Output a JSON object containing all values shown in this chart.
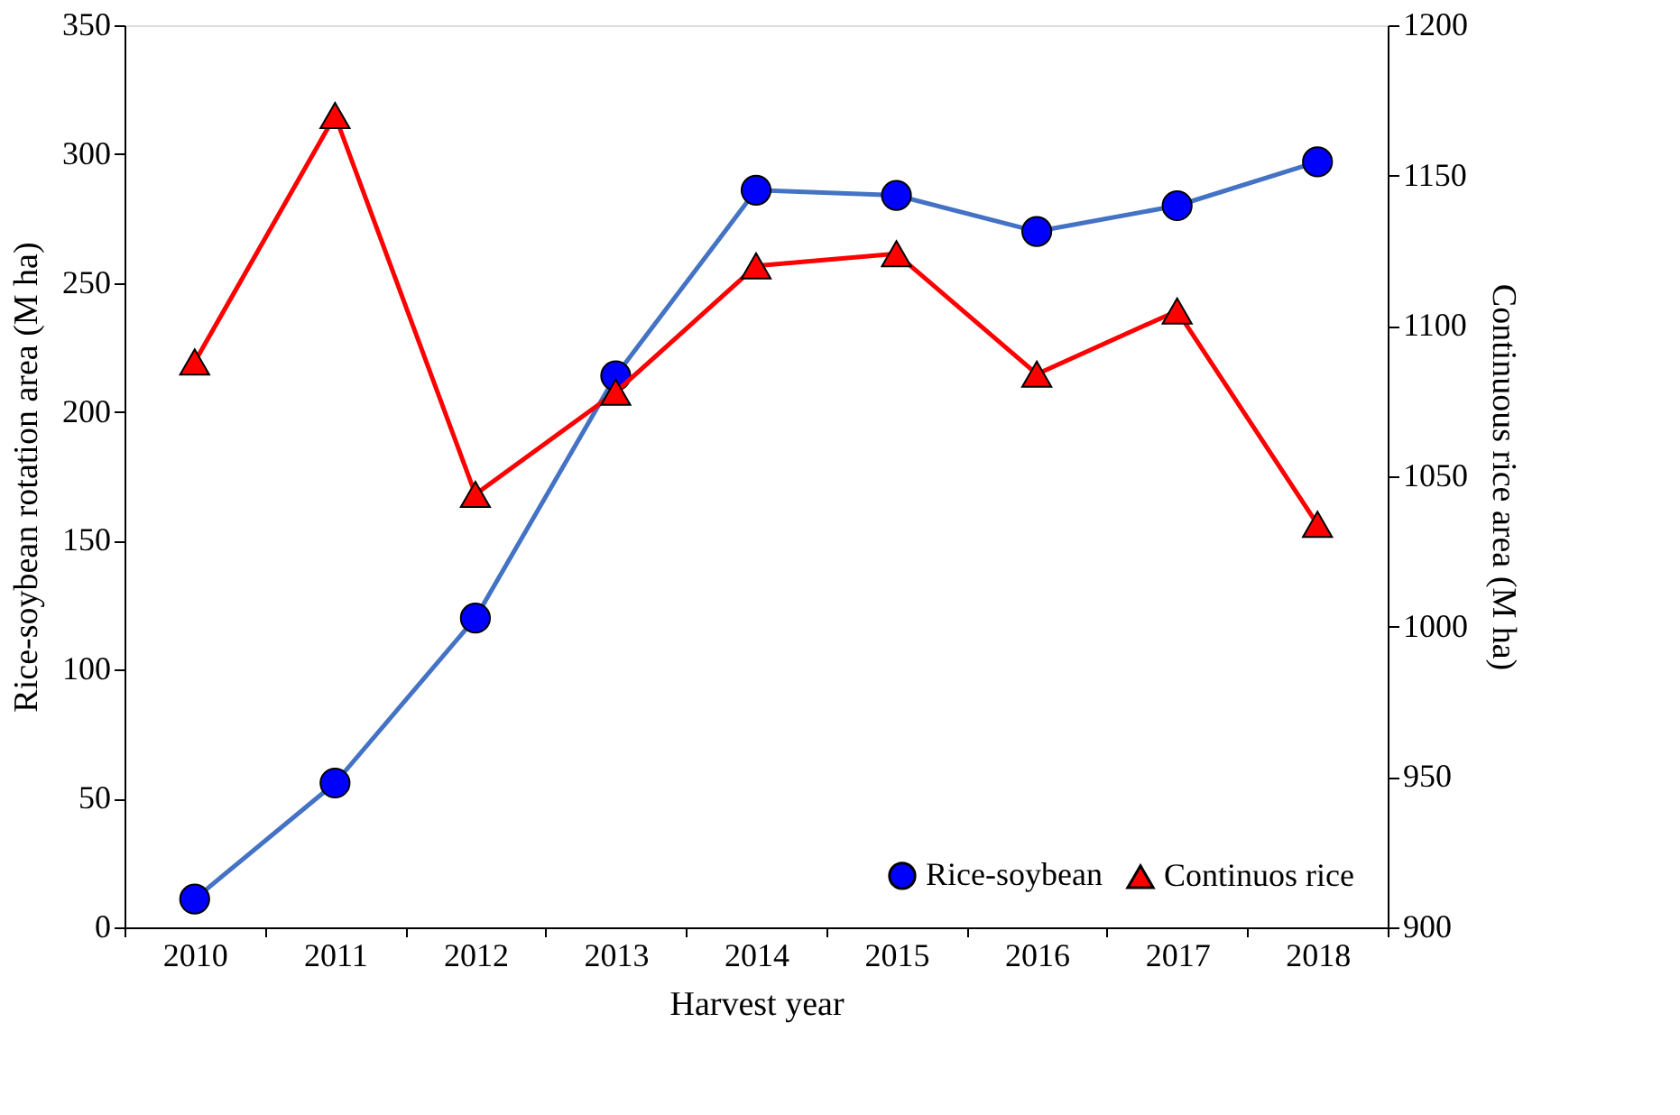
{
  "chart_data": {
    "type": "line",
    "xlabel": "Harvest year",
    "ylabel": "Rice-soybean rotation area (M ha)",
    "y2label": "Continuous rice area (M ha)",
    "categories": [
      "2010",
      "2011",
      "2012",
      "2013",
      "2014",
      "2015",
      "2016",
      "2017",
      "2018"
    ],
    "series": [
      {
        "name": "Rice-soybean",
        "color": "#4472c4",
        "colors": [
          "#0000ff",
          "#0000ff",
          "#0000ff",
          "#0000ff",
          "#0000ff",
          "#0000ff",
          "#0000ff",
          "#0000ff",
          "#0000ff"
        ],
        "marker": "circle",
        "values": [
          11,
          56,
          120,
          214,
          286,
          284,
          270,
          280,
          297
        ]
      },
      {
        "name": "Continuos rice",
        "color": "#ff0000",
        "marker": "triangle",
        "axis": "y2",
        "values": [
          1088,
          1170,
          1044,
          1078,
          1120,
          1124,
          1084,
          1105,
          1034
        ]
      }
    ],
    "ylim": [
      0,
      350
    ],
    "yticks": [
      0,
      50,
      100,
      150,
      200,
      250,
      300,
      350
    ],
    "y2lim": [
      900,
      1200
    ],
    "y2ticks": [
      900,
      950,
      1000,
      1050,
      1100,
      1150,
      1200
    ],
    "grid": false,
    "legend": "bottom right",
    "line_style": "solid"
  }
}
